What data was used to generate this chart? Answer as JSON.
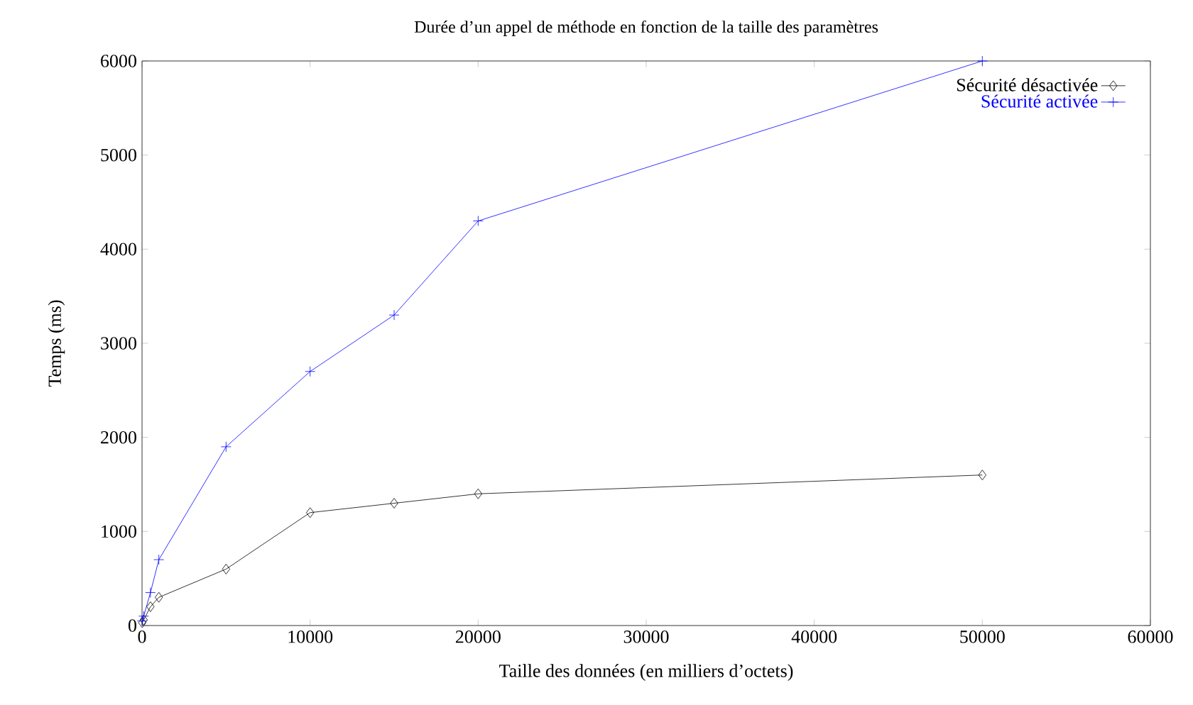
{
  "chart_data": {
    "type": "line",
    "title": "Durée d’un appel de méthode en fonction de la taille des paramètres",
    "xlabel": "Taille des données (en milliers d’octets)",
    "ylabel": "Temps (ms)",
    "series": [
      {
        "name": "Sécurité désactivée",
        "color": "#000000",
        "marker": "diamond",
        "x": [
          10,
          100,
          500,
          1000,
          5000,
          10000,
          15000,
          20000,
          50000
        ],
        "values": [
          30,
          60,
          200,
          300,
          600,
          1200,
          1300,
          1400,
          1600
        ]
      },
      {
        "name": "Sécurité activée",
        "color": "#0000ff",
        "marker": "cross",
        "x": [
          10,
          100,
          500,
          1000,
          5000,
          10000,
          15000,
          20000,
          50000
        ],
        "values": [
          50,
          100,
          350,
          700,
          1900,
          2700,
          3300,
          4300,
          6000
        ]
      }
    ],
    "xlim": [
      0,
      60000
    ],
    "ylim": [
      0,
      6000
    ],
    "xticks": [
      0,
      10000,
      20000,
      30000,
      40000,
      50000,
      60000
    ],
    "yticks": [
      0,
      1000,
      2000,
      3000,
      4000,
      5000,
      6000
    ],
    "legend": "top right",
    "grid": false,
    "line_style": "solid"
  }
}
